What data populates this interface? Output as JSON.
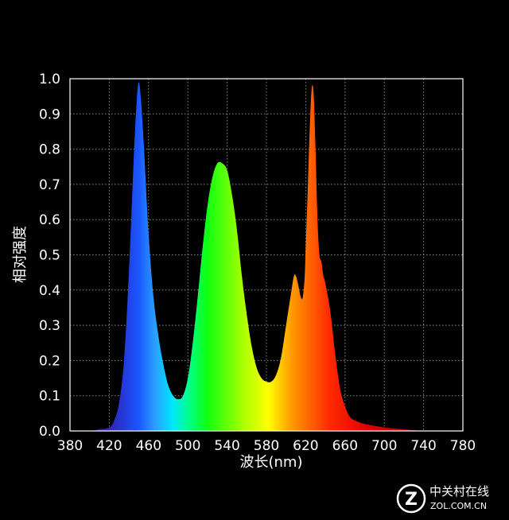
{
  "chart_data": {
    "type": "area",
    "title": "",
    "xlabel": "波长(nm)",
    "ylabel": "相对强度",
    "xlim": [
      380,
      780
    ],
    "ylim": [
      0,
      1.0
    ],
    "x_ticks": [
      "380",
      "420",
      "460",
      "500",
      "540",
      "580",
      "620",
      "660",
      "700",
      "740",
      "780"
    ],
    "y_ticks": [
      "0.0",
      "0.1",
      "0.2",
      "0.3",
      "0.4",
      "0.5",
      "0.6",
      "0.7",
      "0.8",
      "0.9",
      "1.0"
    ],
    "grid": true,
    "fill": "visible-spectrum gradient",
    "series": [
      {
        "x": [
          380,
          400,
          410,
          420,
          425,
          430,
          435,
          440,
          445,
          448,
          450,
          452,
          455,
          460,
          465,
          470,
          475,
          480,
          485,
          490,
          495,
          500,
          505,
          510,
          515,
          520,
          525,
          530,
          535,
          540,
          545,
          550,
          555,
          560,
          565,
          570,
          575,
          580,
          585,
          590,
          595,
          600,
          605,
          608,
          610,
          612,
          615,
          617,
          619,
          620,
          622,
          624,
          626,
          628,
          630,
          632,
          634,
          636,
          638,
          640,
          645,
          650,
          655,
          660,
          665,
          670,
          680,
          700,
          720,
          740,
          760,
          780
        ],
        "y": [
          0.0,
          0.0,
          0.005,
          0.01,
          0.03,
          0.08,
          0.2,
          0.45,
          0.78,
          0.94,
          0.99,
          0.95,
          0.82,
          0.56,
          0.38,
          0.27,
          0.19,
          0.13,
          0.1,
          0.09,
          0.1,
          0.15,
          0.25,
          0.38,
          0.52,
          0.64,
          0.72,
          0.76,
          0.76,
          0.74,
          0.67,
          0.57,
          0.44,
          0.33,
          0.24,
          0.18,
          0.15,
          0.14,
          0.14,
          0.16,
          0.21,
          0.3,
          0.39,
          0.44,
          0.44,
          0.42,
          0.38,
          0.38,
          0.44,
          0.52,
          0.68,
          0.85,
          0.97,
          0.96,
          0.8,
          0.6,
          0.5,
          0.48,
          0.44,
          0.42,
          0.34,
          0.22,
          0.12,
          0.07,
          0.04,
          0.03,
          0.02,
          0.01,
          0.005,
          0.0,
          0.0,
          0.0
        ]
      }
    ]
  },
  "watermark": {
    "line1": "中关村在线",
    "line2": "ZOL.COM.CN"
  }
}
